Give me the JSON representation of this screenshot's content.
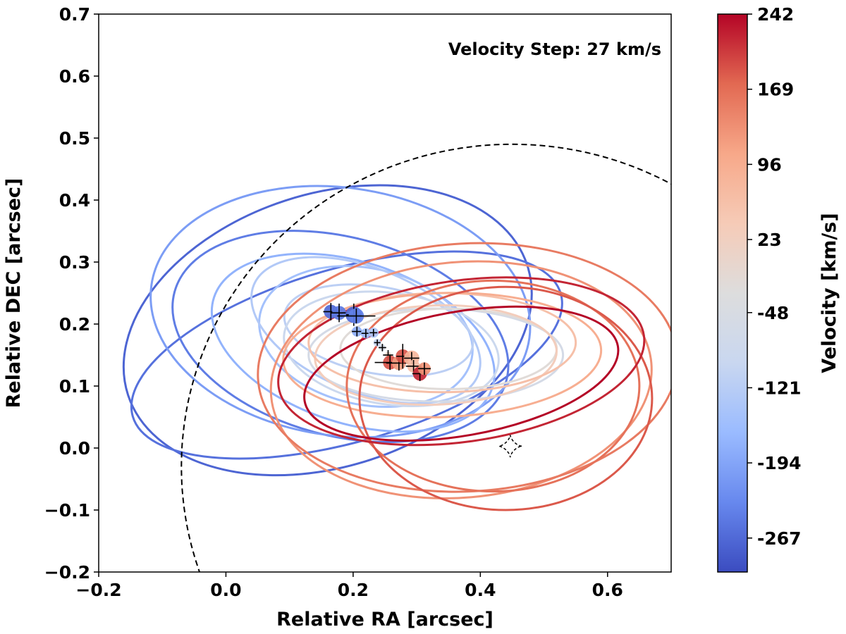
{
  "chart_data": {
    "type": "scatter",
    "title": "",
    "xlabel": "Relative RA [arcsec]",
    "ylabel": "Relative DEC [arcsec]",
    "xlim": [
      -0.2,
      0.7
    ],
    "ylim": [
      -0.2,
      0.7
    ],
    "x_ticks": [
      "−0.2",
      "0.0",
      "0.2",
      "0.4",
      "0.6"
    ],
    "y_ticks": [
      "−0.2",
      "−0.1",
      "0.0",
      "0.1",
      "0.2",
      "0.3",
      "0.4",
      "0.5",
      "0.6",
      "0.7"
    ],
    "annotation": "Velocity Step: 27 km/s",
    "grid": false,
    "legend": "none",
    "colorbar": {
      "label": "Velocity [km/s]",
      "range": [
        -300,
        242
      ],
      "ticks": [
        "242",
        "169",
        "96",
        "23",
        "-48",
        "-121",
        "-194",
        "-267"
      ],
      "tick_values": [
        242,
        169,
        96,
        23,
        -48,
        -121,
        -194,
        -267
      ],
      "colormap": "coolwarm",
      "colors": [
        "#3b4cc0",
        "#6788ee",
        "#9abbff",
        "#c9d7f0",
        "#dddddd",
        "#f6cbb7",
        "#f7a889",
        "#e26952",
        "#b40426"
      ]
    },
    "critical_curve": {
      "style": "dashed",
      "center": [
        0.45,
        -0.03
      ],
      "radius": 0.52,
      "start_angle_deg": 12,
      "end_angle_deg": 215
    },
    "source_caustic": {
      "center": [
        0.447,
        0.003
      ],
      "half_size": 0.018,
      "style": "dashed"
    },
    "ellipses": [
      {
        "v": -272,
        "cx": 0.16,
        "cy": 0.19,
        "a": 0.33,
        "b": 0.22,
        "angle": 18
      },
      {
        "v": -258,
        "cx": 0.19,
        "cy": 0.15,
        "a": 0.35,
        "b": 0.14,
        "angle": 16
      },
      {
        "v": -245,
        "cx": 0.18,
        "cy": 0.18,
        "a": 0.27,
        "b": 0.16,
        "angle": -15
      },
      {
        "v": -205,
        "cx": 0.18,
        "cy": 0.22,
        "a": 0.3,
        "b": 0.2,
        "angle": -8
      },
      {
        "v": -175,
        "cx": 0.2,
        "cy": 0.17,
        "a": 0.23,
        "b": 0.13,
        "angle": -18
      },
      {
        "v": -150,
        "cx": 0.22,
        "cy": 0.18,
        "a": 0.17,
        "b": 0.11,
        "angle": -12
      },
      {
        "v": -130,
        "cx": 0.22,
        "cy": 0.19,
        "a": 0.19,
        "b": 0.1,
        "angle": -22
      },
      {
        "v": -115,
        "cx": 0.24,
        "cy": 0.19,
        "a": 0.15,
        "b": 0.07,
        "angle": -10
      },
      {
        "v": -90,
        "cx": 0.26,
        "cy": 0.16,
        "a": 0.17,
        "b": 0.09,
        "angle": -8
      },
      {
        "v": -60,
        "cx": 0.33,
        "cy": 0.15,
        "a": 0.2,
        "b": 0.075,
        "angle": 0
      },
      {
        "v": -20,
        "cx": 0.35,
        "cy": 0.16,
        "a": 0.17,
        "b": 0.065,
        "angle": 0
      },
      {
        "v": 30,
        "cx": 0.33,
        "cy": 0.15,
        "a": 0.19,
        "b": 0.08,
        "angle": 2
      },
      {
        "v": 60,
        "cx": 0.34,
        "cy": 0.17,
        "a": 0.21,
        "b": 0.08,
        "angle": 0
      },
      {
        "v": 95,
        "cx": 0.34,
        "cy": 0.15,
        "a": 0.25,
        "b": 0.1,
        "angle": 2
      },
      {
        "v": 130,
        "cx": 0.37,
        "cy": 0.11,
        "a": 0.3,
        "b": 0.19,
        "angle": 5
      },
      {
        "v": 155,
        "cx": 0.38,
        "cy": 0.13,
        "a": 0.33,
        "b": 0.2,
        "angle": 3
      },
      {
        "v": 165,
        "cx": 0.42,
        "cy": 0.1,
        "a": 0.23,
        "b": 0.17,
        "angle": 0
      },
      {
        "v": 185,
        "cx": 0.44,
        "cy": 0.08,
        "a": 0.23,
        "b": 0.18,
        "angle": 0
      },
      {
        "v": 220,
        "cx": 0.37,
        "cy": 0.14,
        "a": 0.29,
        "b": 0.13,
        "angle": 8
      },
      {
        "v": 242,
        "cx": 0.37,
        "cy": 0.12,
        "a": 0.25,
        "b": 0.1,
        "angle": 10
      }
    ],
    "points": [
      {
        "x": 0.165,
        "y": 0.22,
        "v": -267,
        "r": 0.011,
        "xerr": 0.012,
        "yerr": 0.014
      },
      {
        "x": 0.178,
        "y": 0.218,
        "v": -250,
        "r": 0.011,
        "xerr": 0.013,
        "yerr": 0.015
      },
      {
        "x": 0.201,
        "y": 0.215,
        "v": -267,
        "r": 0.013,
        "xerr": 0.012,
        "yerr": 0.018
      },
      {
        "x": 0.205,
        "y": 0.213,
        "v": -240,
        "r": 0.012,
        "xerr": 0.03,
        "yerr": 0.012
      },
      {
        "x": 0.206,
        "y": 0.188,
        "v": -180,
        "r": 0.008,
        "xerr": 0.008,
        "yerr": 0.008
      },
      {
        "x": 0.22,
        "y": 0.185,
        "v": -160,
        "r": 0.008,
        "xerr": 0.007,
        "yerr": 0.007
      },
      {
        "x": 0.232,
        "y": 0.186,
        "v": -140,
        "r": 0.008,
        "xerr": 0.006,
        "yerr": 0.006
      },
      {
        "x": 0.238,
        "y": 0.17,
        "v": -105,
        "r": 0.006,
        "xerr": 0.005,
        "yerr": 0.005
      },
      {
        "x": 0.246,
        "y": 0.162,
        "v": -60,
        "r": 0.005,
        "xerr": 0.006,
        "yerr": 0.006
      },
      {
        "x": 0.255,
        "y": 0.15,
        "v": 10,
        "r": 0.005,
        "xerr": 0.008,
        "yerr": 0.008
      },
      {
        "x": 0.258,
        "y": 0.138,
        "v": 190,
        "r": 0.011,
        "xerr": 0.024,
        "yerr": 0.012
      },
      {
        "x": 0.272,
        "y": 0.137,
        "v": 120,
        "r": 0.011,
        "xerr": 0.02,
        "yerr": 0.012
      },
      {
        "x": 0.278,
        "y": 0.148,
        "v": 190,
        "r": 0.011,
        "xerr": 0.01,
        "yerr": 0.02
      },
      {
        "x": 0.292,
        "y": 0.145,
        "v": 80,
        "r": 0.012,
        "xerr": 0.012,
        "yerr": 0.01
      },
      {
        "x": 0.295,
        "y": 0.132,
        "v": 60,
        "r": 0.01,
        "xerr": 0.012,
        "yerr": 0.01
      },
      {
        "x": 0.305,
        "y": 0.12,
        "v": 220,
        "r": 0.011,
        "xerr": 0.012,
        "yerr": 0.012
      },
      {
        "x": 0.312,
        "y": 0.128,
        "v": 130,
        "r": 0.01,
        "xerr": 0.01,
        "yerr": 0.01
      }
    ]
  }
}
